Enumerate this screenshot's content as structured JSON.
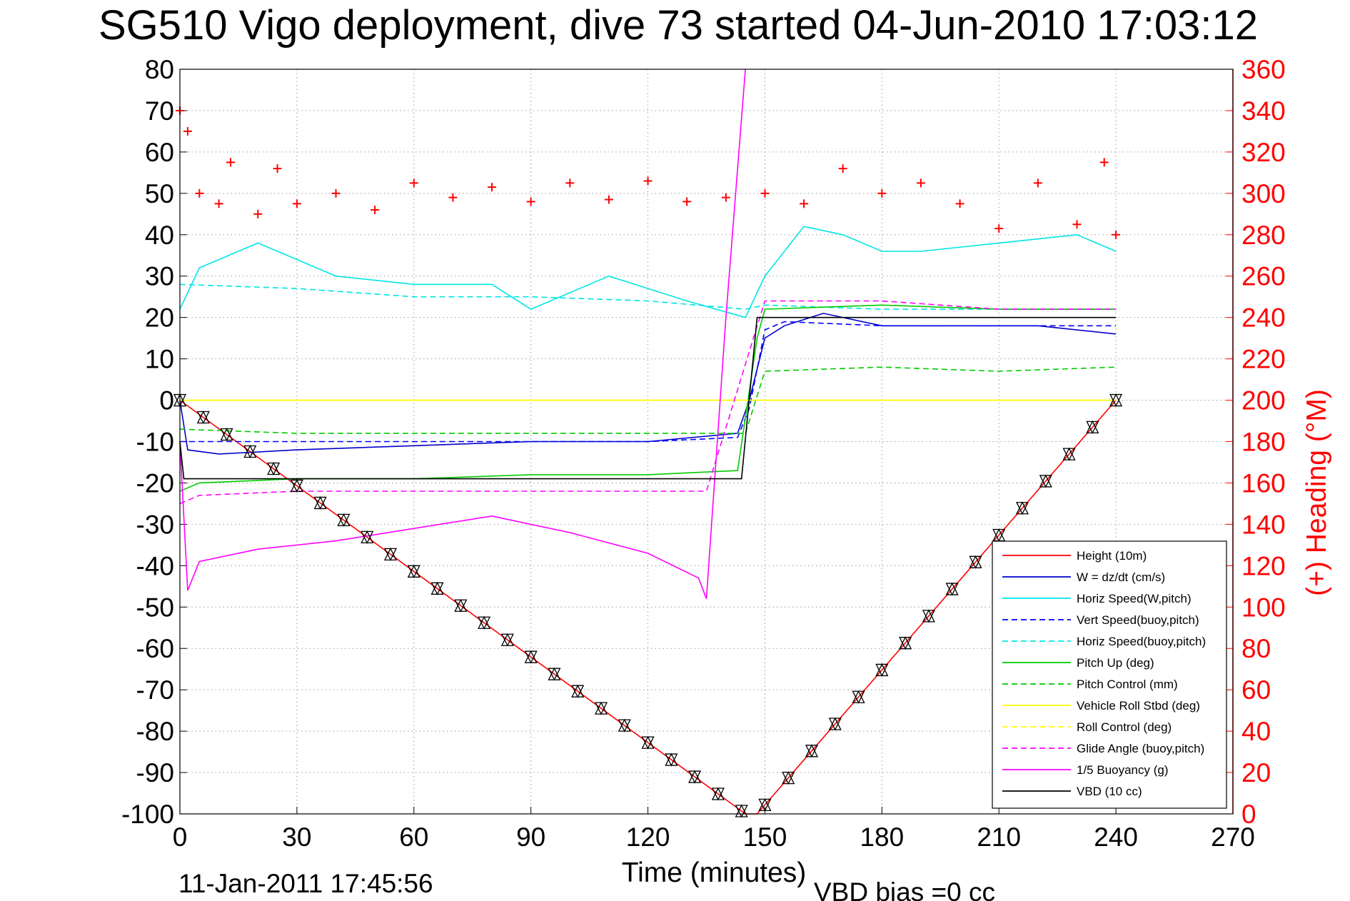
{
  "chart_data": {
    "type": "line",
    "title": "SG510 Vigo deployment, dive 73 started 04-Jun-2010 17:03:12",
    "xlabel": "Time (minutes)",
    "ylabel_right": "(+) Heading (°M)",
    "xlim": [
      0,
      270
    ],
    "ylim": [
      -100,
      80
    ],
    "ylim_right": [
      0,
      360
    ],
    "x_ticks": [
      "0",
      "30",
      "60",
      "90",
      "120",
      "150",
      "180",
      "210",
      "240",
      "270"
    ],
    "y_ticks": [
      "-100",
      "-90",
      "-80",
      "-70",
      "-60",
      "-50",
      "-40",
      "-30",
      "-20",
      "-10",
      "0",
      "10",
      "20",
      "30",
      "40",
      "50",
      "60",
      "70",
      "80"
    ],
    "y_ticks_right": [
      "0",
      "20",
      "40",
      "60",
      "80",
      "100",
      "120",
      "140",
      "160",
      "180",
      "200",
      "220",
      "240",
      "260",
      "280",
      "300",
      "320",
      "340",
      "360"
    ],
    "grid": true,
    "legend_position": "bottom-right",
    "footer_left": "11-Jan-2011 17:45:56",
    "footer_right": "VBD bias =0 cc",
    "series": [
      {
        "name": "Height (10m)",
        "color": "#ff0000",
        "style": "solid",
        "x": [
          0,
          145,
          148,
          240
        ],
        "y": [
          0,
          -100,
          -100,
          0
        ]
      },
      {
        "name": "W = dz/dt (cm/s)",
        "color": "#0000cc",
        "style": "solid",
        "x": [
          0,
          2,
          10,
          30,
          60,
          90,
          120,
          143,
          146,
          150,
          155,
          165,
          180,
          200,
          220,
          240
        ],
        "y": [
          0,
          -12,
          -13,
          -12,
          -11,
          -10,
          -10,
          -8,
          0,
          15,
          18,
          21,
          18,
          18,
          18,
          16
        ]
      },
      {
        "name": "Horiz Speed(W,pitch)",
        "color": "#00e5e5",
        "style": "solid",
        "x": [
          0,
          5,
          20,
          40,
          60,
          80,
          90,
          110,
          130,
          145,
          150,
          160,
          170,
          180,
          190,
          210,
          230,
          240
        ],
        "y": [
          22,
          32,
          38,
          30,
          28,
          28,
          22,
          30,
          24,
          20,
          30,
          42,
          40,
          36,
          36,
          38,
          40,
          36
        ]
      },
      {
        "name": "Vert Speed(buoy,pitch)",
        "color": "#0000ff",
        "style": "dashed",
        "x": [
          0,
          30,
          60,
          90,
          120,
          143,
          146,
          150,
          155,
          180,
          210,
          240
        ],
        "y": [
          -10,
          -10,
          -10,
          -10,
          -10,
          -9,
          -2,
          17,
          19,
          18,
          18,
          18
        ]
      },
      {
        "name": "Horiz Speed(buoy,pitch)",
        "color": "#00e5e5",
        "style": "dashed",
        "x": [
          0,
          30,
          60,
          90,
          120,
          145,
          150,
          180,
          210,
          240
        ],
        "y": [
          28,
          27,
          25,
          25,
          24,
          22,
          23,
          22,
          22,
          22
        ]
      },
      {
        "name": "Pitch Up (deg)",
        "color": "#00cc00",
        "style": "solid",
        "x": [
          0,
          5,
          30,
          60,
          90,
          120,
          143,
          148,
          150,
          180,
          210,
          240
        ],
        "y": [
          -22,
          -20,
          -19,
          -19,
          -18,
          -18,
          -17,
          15,
          22,
          23,
          22,
          22
        ]
      },
      {
        "name": "Pitch Control (mm)",
        "color": "#00cc00",
        "style": "dashed",
        "x": [
          0,
          30,
          60,
          90,
          120,
          145,
          150,
          180,
          210,
          240
        ],
        "y": [
          -7,
          -8,
          -8,
          -8,
          -8,
          -8,
          7,
          8,
          7,
          8
        ]
      },
      {
        "name": "Vehicle Roll Stbd (deg)",
        "color": "#ffff00",
        "style": "solid",
        "x": [
          0,
          30,
          60,
          90,
          120,
          145,
          150,
          180,
          210,
          240
        ],
        "y": [
          0,
          0,
          0,
          0,
          0,
          0,
          0,
          0,
          0,
          0
        ]
      },
      {
        "name": "Roll Control (deg)",
        "color": "#ffff00",
        "style": "dashed",
        "x": [
          0,
          30,
          60,
          90,
          120,
          145,
          150,
          180,
          210,
          240
        ],
        "y": [
          0,
          0,
          0,
          0,
          0,
          0,
          0,
          0,
          0,
          0
        ]
      },
      {
        "name": "Glide Angle (buoy,pitch)",
        "color": "#ff00ff",
        "style": "dashed",
        "x": [
          0,
          5,
          30,
          60,
          90,
          120,
          135,
          150,
          180,
          210,
          240
        ],
        "y": [
          -25,
          -23,
          -22,
          -22,
          -22,
          -22,
          -22,
          24,
          24,
          22,
          22
        ]
      },
      {
        "name": "1/5 Buoyancy (g)",
        "color": "#ff00ff",
        "style": "solid",
        "x": [
          0,
          2,
          5,
          20,
          40,
          60,
          80,
          100,
          120,
          133,
          135,
          140,
          145
        ],
        "y": [
          -10,
          -46,
          -39,
          -36,
          -34,
          -31,
          -28,
          -32,
          -37,
          -43,
          -48,
          20,
          80
        ]
      },
      {
        "name": "VBD (10 cc)",
        "color": "#000000",
        "style": "solid",
        "x": [
          0,
          1,
          144,
          148,
          240
        ],
        "y": [
          -10,
          -19,
          -19,
          20,
          20
        ]
      },
      {
        "name": "",
        "axis": "right",
        "color": "#ff0000",
        "style": "markers",
        "marker": "+",
        "x": [
          0,
          2,
          5,
          10,
          13,
          20,
          25,
          30,
          40,
          50,
          60,
          70,
          80,
          90,
          100,
          110,
          120,
          130,
          140,
          150,
          160,
          170,
          180,
          190,
          200,
          210,
          220,
          230,
          237,
          240
        ],
        "y": [
          340,
          330,
          300,
          295,
          315,
          290,
          312,
          295,
          300,
          292,
          305,
          298,
          303,
          296,
          305,
          297,
          306,
          296,
          298,
          300,
          295,
          312,
          300,
          305,
          295,
          283,
          305,
          285,
          315,
          280
        ]
      }
    ]
  }
}
